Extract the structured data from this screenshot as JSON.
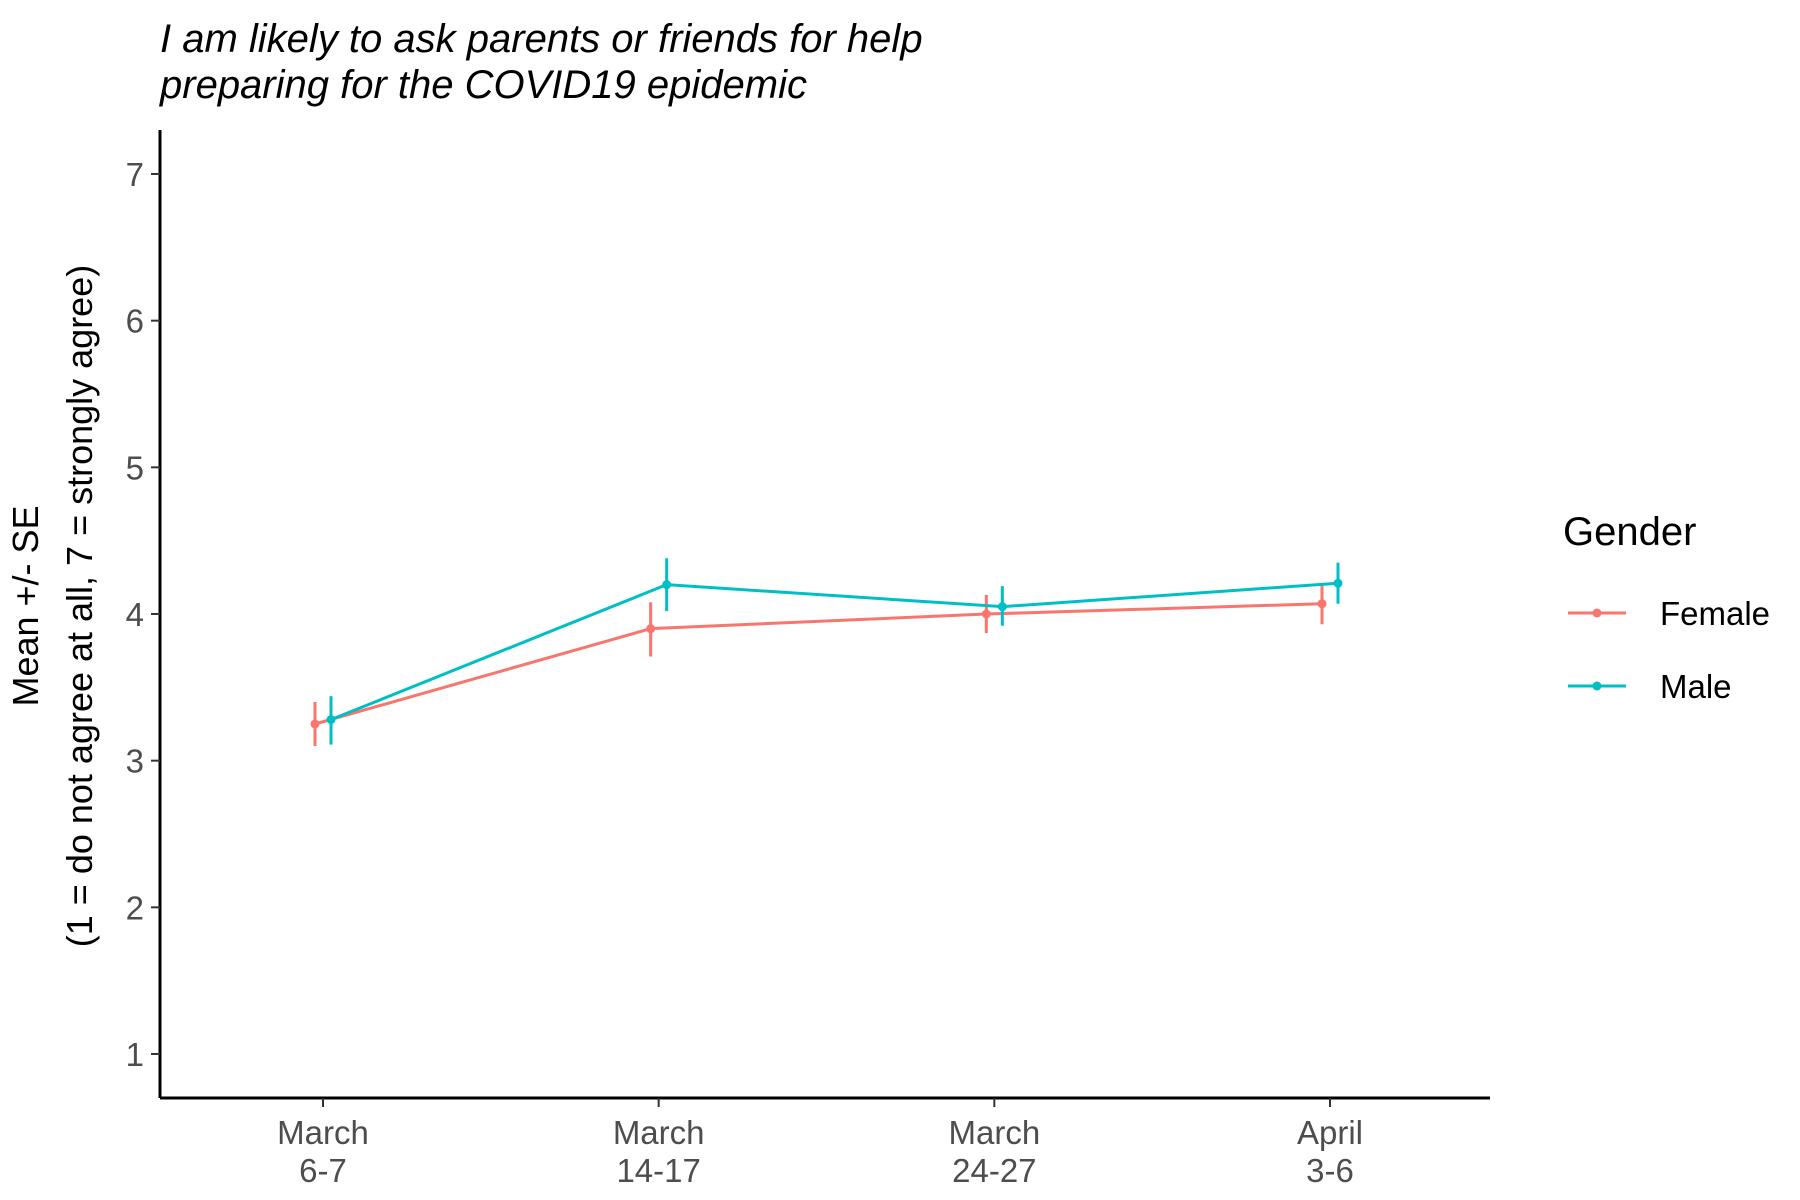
{
  "chart_data": {
    "type": "line",
    "title_lines": [
      "I am likely to ask parents or friends for help",
      "preparing for the COVID19 epidemic"
    ],
    "ylabel_lines": [
      "Mean +/- SE",
      "(1 = do not agree at all, 7 = strongly agree)"
    ],
    "xlabel": "",
    "categories": [
      [
        "March",
        "6-7"
      ],
      [
        "March",
        "14-17"
      ],
      [
        "March",
        "24-27"
      ],
      [
        "April",
        "3-6"
      ]
    ],
    "ylim": [
      0.7,
      7.3
    ],
    "yticks": [
      1,
      2,
      3,
      4,
      5,
      6,
      7
    ],
    "grid": false,
    "legend": {
      "title": "Gender",
      "placement": "right"
    },
    "series": [
      {
        "name": "Female",
        "color": "#F8766D",
        "values": [
          3.25,
          3.9,
          4.0,
          4.07
        ],
        "se_low": [
          3.1,
          3.71,
          3.87,
          3.93
        ],
        "se_high": [
          3.4,
          4.08,
          4.13,
          4.2
        ]
      },
      {
        "name": "Male",
        "color": "#00BFC4",
        "values": [
          3.28,
          4.2,
          4.05,
          4.21
        ],
        "se_low": [
          3.11,
          4.02,
          3.92,
          4.07
        ],
        "se_high": [
          3.44,
          4.38,
          4.19,
          4.35
        ]
      }
    ]
  }
}
